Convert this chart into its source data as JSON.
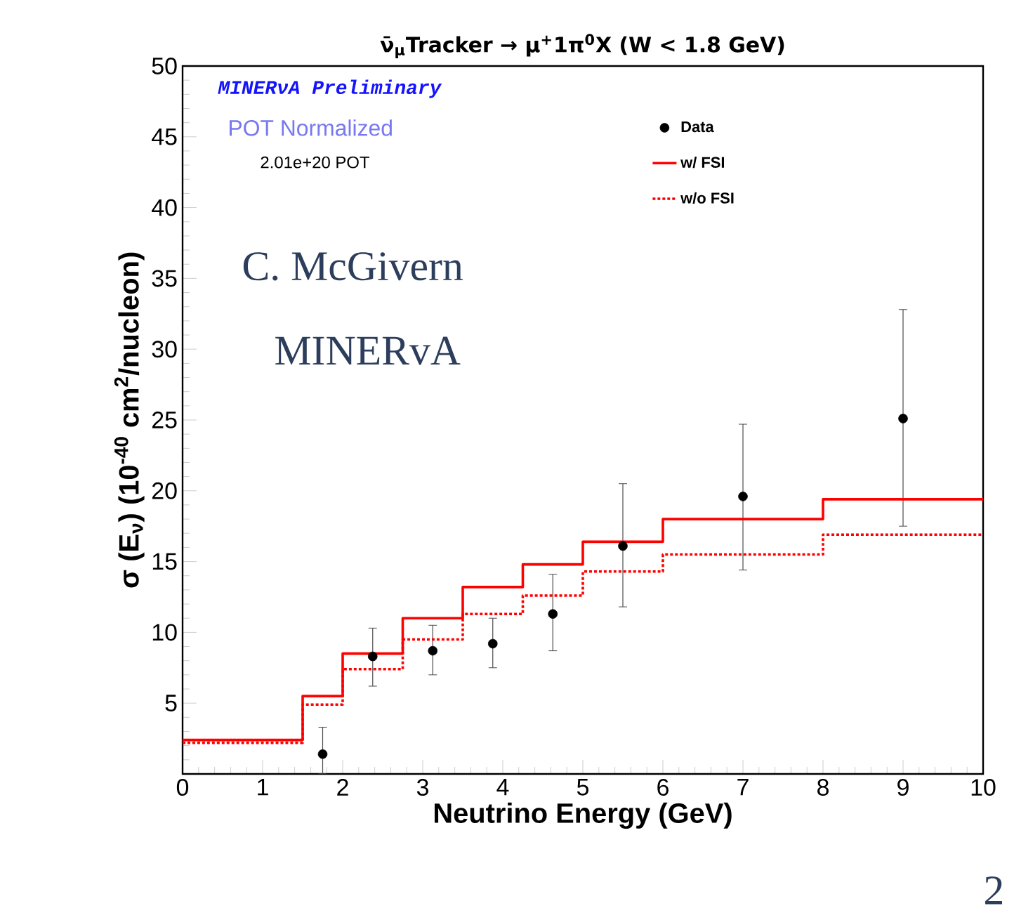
{
  "chart_data": {
    "type": "step",
    "title": "ν̄$_{μ}$Tracker → μ$^{+}$1π$^{0}$X (W < 1.8 GeV)",
    "xlabel": "Neutrino Energy (GeV)",
    "ylabel": "σ (E$_{ν}$) (10$^{-40}$ cm$^{2}$/nucleon)",
    "xlim": [
      0,
      10
    ],
    "ylim": [
      0,
      50
    ],
    "xticks": [
      0,
      1,
      2,
      3,
      4,
      5,
      6,
      7,
      8,
      9,
      10
    ],
    "yticks": [
      {
        "value": 0,
        "label": null
      },
      5,
      10,
      15,
      20,
      25,
      30,
      35,
      40,
      45,
      50
    ],
    "legend": "top right",
    "marker": "circle",
    "annotations": [
      "MINERνA Preliminary",
      "POT Normalized",
      "2.01e+20 POT",
      "C. McGivern",
      "MINERvA",
      "2"
    ],
    "series": [
      {
        "name": "Data",
        "type": "scatter",
        "color": "#000000",
        "x": [
          1.75,
          2.375,
          3.125,
          3.875,
          4.625,
          5.5,
          7,
          9
        ],
        "values": [
          1.4,
          8.3,
          8.7,
          9.2,
          11.3,
          16.1,
          19.6,
          25.1
        ],
        "errors": [
          [
            0.0,
            3.3
          ],
          [
            6.2,
            10.3
          ],
          [
            7.0,
            10.5
          ],
          [
            7.5,
            11.0
          ],
          [
            8.7,
            14.1
          ],
          [
            11.8,
            20.5
          ],
          [
            14.4,
            24.7
          ],
          [
            17.5,
            32.8
          ]
        ]
      },
      {
        "name": "w/ FSI",
        "line_style": "solid",
        "marker": "none",
        "color": "#ff0000",
        "x": [
          0,
          1.5,
          2,
          2.75,
          3.5,
          4.25,
          5,
          6,
          8,
          10
        ],
        "values": [
          2.4,
          5.5,
          8.5,
          11.0,
          13.2,
          14.8,
          16.4,
          18.0,
          19.4,
          19.4
        ]
      },
      {
        "name": "w/o FSI",
        "line_style": "dotted",
        "marker": "none",
        "color": "#ff0000",
        "x": [
          0,
          1.5,
          2,
          2.75,
          3.5,
          4.25,
          5,
          6,
          8,
          10
        ],
        "values": [
          2.2,
          4.9,
          7.4,
          9.5,
          11.3,
          12.6,
          14.3,
          15.5,
          16.9,
          16.9
        ]
      }
    ]
  }
}
